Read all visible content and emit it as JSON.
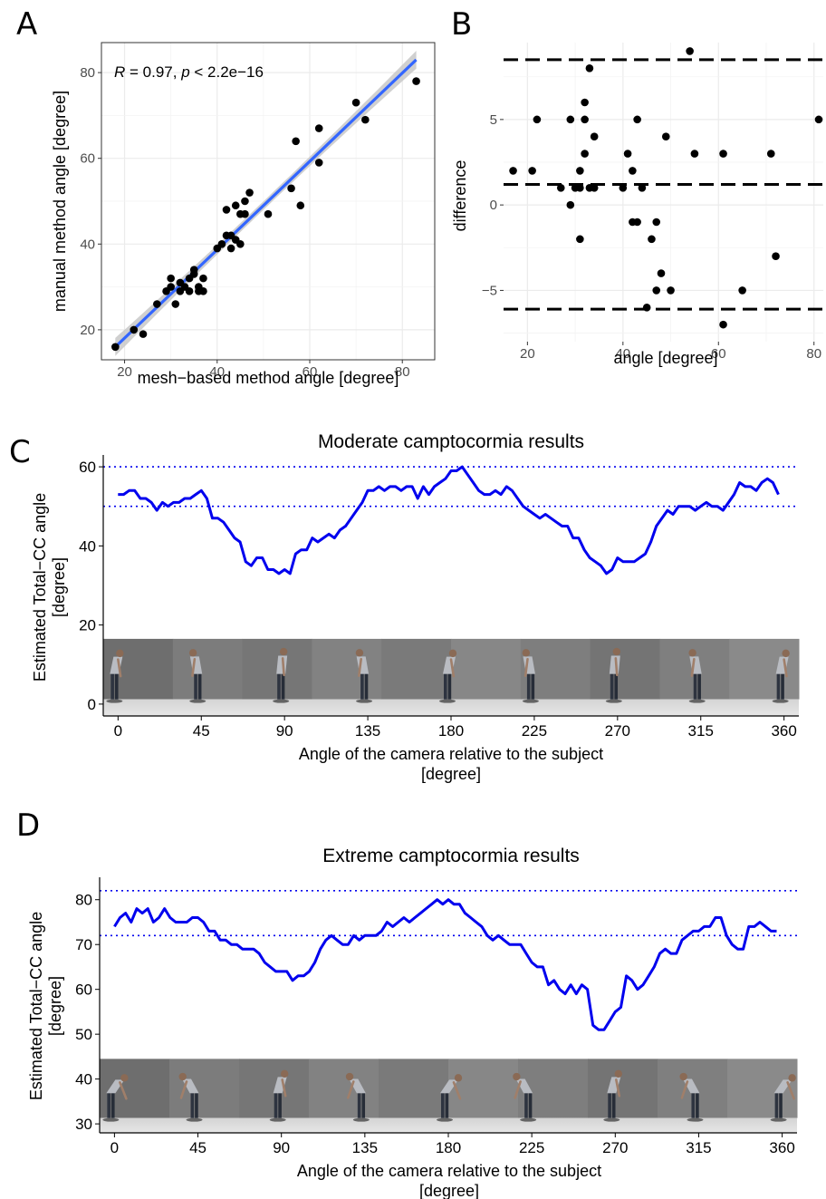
{
  "panels": {
    "A": {
      "letter": "A"
    },
    "B": {
      "letter": "B"
    },
    "C": {
      "letter": "C"
    },
    "D": {
      "letter": "D"
    }
  },
  "colors": {
    "line": "#0000ee",
    "regression": "#3366ff",
    "ci": "#c8c8c8",
    "grid": "#ebebeb",
    "points": "#000000"
  },
  "chart_data": [
    {
      "id": "A",
      "type": "scatter",
      "xlabel": "mesh−based method angle [degree]",
      "ylabel": "manual method angle [degree]",
      "annotation": {
        "r_label": "R",
        "r_value": " = 0.97, ",
        "p_label": "p",
        "p_value": " < 2.2e−16"
      },
      "xlim": [
        15,
        87
      ],
      "ylim": [
        13,
        87
      ],
      "xticks": [
        20,
        40,
        60,
        80
      ],
      "yticks": [
        20,
        40,
        60,
        80
      ],
      "grid": true,
      "regression": {
        "x0": 18,
        "y0": 16,
        "x1": 83,
        "y1": 83
      },
      "points": [
        [
          18,
          16
        ],
        [
          22,
          20
        ],
        [
          24,
          19
        ],
        [
          27,
          26
        ],
        [
          29,
          29
        ],
        [
          30,
          32
        ],
        [
          30,
          30
        ],
        [
          31,
          26
        ],
        [
          32,
          29
        ],
        [
          32,
          31
        ],
        [
          33,
          30
        ],
        [
          34,
          29
        ],
        [
          34,
          32
        ],
        [
          35,
          33
        ],
        [
          35,
          34
        ],
        [
          36,
          30
        ],
        [
          36,
          29
        ],
        [
          37,
          32
        ],
        [
          37,
          29
        ],
        [
          40,
          39
        ],
        [
          41,
          40
        ],
        [
          42,
          42
        ],
        [
          42,
          48
        ],
        [
          43,
          42
        ],
        [
          43,
          39
        ],
        [
          44,
          49
        ],
        [
          44,
          41
        ],
        [
          45,
          47
        ],
        [
          45,
          40
        ],
        [
          46,
          50
        ],
        [
          46,
          47
        ],
        [
          47,
          52
        ],
        [
          51,
          47
        ],
        [
          56,
          53
        ],
        [
          57,
          64
        ],
        [
          58,
          49
        ],
        [
          62,
          67
        ],
        [
          62,
          59
        ],
        [
          70,
          73
        ],
        [
          72,
          69
        ],
        [
          83,
          78
        ]
      ]
    },
    {
      "id": "B",
      "type": "scatter",
      "xlabel": "angle [degree]",
      "ylabel": "difference",
      "xlim": [
        15,
        81
      ],
      "ylim": [
        -8,
        9.5
      ],
      "xticks": [
        20,
        40,
        60,
        80
      ],
      "yticks": [
        -5,
        0,
        5
      ],
      "grid": true,
      "hlines": [
        8.5,
        1.2,
        -6.1
      ],
      "points": [
        [
          17,
          2
        ],
        [
          21,
          2
        ],
        [
          22,
          5
        ],
        [
          27,
          1
        ],
        [
          29,
          5
        ],
        [
          29,
          0
        ],
        [
          30,
          1
        ],
        [
          31,
          1
        ],
        [
          31,
          2
        ],
        [
          31,
          -2
        ],
        [
          32,
          3
        ],
        [
          32,
          5
        ],
        [
          32,
          6
        ],
        [
          33,
          8
        ],
        [
          33,
          1
        ],
        [
          34,
          4
        ],
        [
          34,
          1
        ],
        [
          40,
          1
        ],
        [
          41,
          3
        ],
        [
          42,
          -1
        ],
        [
          42,
          2
        ],
        [
          43,
          5
        ],
        [
          43,
          -1
        ],
        [
          44,
          1
        ],
        [
          45,
          -6
        ],
        [
          46,
          -2
        ],
        [
          47,
          -1
        ],
        [
          47,
          -5
        ],
        [
          48,
          -4
        ],
        [
          49,
          4
        ],
        [
          50,
          -5
        ],
        [
          54,
          9
        ],
        [
          55,
          3
        ],
        [
          61,
          3
        ],
        [
          61,
          -7
        ],
        [
          65,
          -5
        ],
        [
          71,
          3
        ],
        [
          72,
          -3
        ],
        [
          81,
          5
        ]
      ]
    },
    {
      "id": "C",
      "type": "line",
      "title": "Moderate camptocormia results",
      "xlabel_line1": "Angle of the camera relative to the subject",
      "xlabel_line2": "[degree]",
      "ylabel_line1": "Estimated Total−CC angle",
      "ylabel_line2": "[degree]",
      "xlim": [
        -8,
        368
      ],
      "ylim": [
        -3,
        63
      ],
      "xticks": [
        0,
        45,
        90,
        135,
        180,
        225,
        270,
        315,
        360
      ],
      "yticks": [
        0,
        20,
        40,
        60
      ],
      "grid": false,
      "hlines": [
        60,
        50
      ],
      "x": [
        0,
        3,
        6,
        9,
        12,
        15,
        18,
        21,
        24,
        27,
        30,
        33,
        36,
        39,
        42,
        45,
        48,
        51,
        54,
        57,
        60,
        63,
        66,
        69,
        72,
        75,
        78,
        81,
        84,
        87,
        90,
        93,
        96,
        99,
        102,
        105,
        108,
        111,
        114,
        117,
        120,
        123,
        126,
        129,
        132,
        135,
        138,
        141,
        144,
        147,
        150,
        153,
        156,
        159,
        162,
        165,
        168,
        171,
        174,
        177,
        180,
        183,
        186,
        189,
        192,
        195,
        198,
        201,
        204,
        207,
        210,
        213,
        216,
        219,
        222,
        225,
        228,
        231,
        234,
        237,
        240,
        243,
        246,
        249,
        252,
        255,
        258,
        261,
        264,
        267,
        270,
        273,
        276,
        279,
        282,
        285,
        288,
        291,
        294,
        297,
        300,
        303,
        306,
        309,
        312,
        315,
        318,
        321,
        324,
        327,
        330,
        333,
        336,
        339,
        342,
        345,
        348,
        351,
        354,
        357
      ],
      "y": [
        53,
        53,
        54,
        54,
        52,
        52,
        51,
        49,
        51,
        50,
        51,
        51,
        52,
        52,
        53,
        54,
        52,
        47,
        47,
        46,
        44,
        42,
        41,
        36,
        35,
        37,
        37,
        34,
        34,
        33,
        34,
        33,
        38,
        39,
        39,
        42,
        41,
        42,
        43,
        42,
        44,
        45,
        47,
        49,
        51,
        54,
        54,
        55,
        54,
        55,
        55,
        54,
        55,
        55,
        52,
        55,
        53,
        55,
        56,
        57,
        59,
        59,
        60,
        58,
        56,
        54,
        53,
        53,
        54,
        53,
        55,
        54,
        52,
        50,
        49,
        48,
        47,
        48,
        47,
        46,
        45,
        45,
        42,
        42,
        39,
        37,
        36,
        35,
        33,
        34,
        37,
        36,
        36,
        36,
        37,
        38,
        41,
        45,
        47,
        49,
        48,
        50,
        50,
        50,
        49,
        50,
        51,
        50,
        50,
        49,
        51,
        53,
        56,
        55,
        55,
        54,
        56,
        57,
        56,
        53
      ]
    },
    {
      "id": "D",
      "type": "line",
      "title": "Extreme camptocormia results",
      "xlabel_line1": "Angle of the camera relative to the subject",
      "xlabel_line2": "[degree]",
      "ylabel_line1": "Estimated Total−CC angle",
      "ylabel_line2": "[degree]",
      "xlim": [
        -8,
        368
      ],
      "ylim": [
        28,
        85
      ],
      "xticks": [
        0,
        45,
        90,
        135,
        180,
        225,
        270,
        315,
        360
      ],
      "yticks": [
        30,
        40,
        50,
        60,
        70,
        80
      ],
      "grid": false,
      "hlines": [
        82,
        72
      ],
      "x": [
        0,
        3,
        6,
        9,
        12,
        15,
        18,
        21,
        24,
        27,
        30,
        33,
        36,
        39,
        42,
        45,
        48,
        51,
        54,
        57,
        60,
        63,
        66,
        69,
        72,
        75,
        78,
        81,
        84,
        87,
        90,
        93,
        96,
        99,
        102,
        105,
        108,
        111,
        114,
        117,
        120,
        123,
        126,
        129,
        132,
        135,
        138,
        141,
        144,
        147,
        150,
        153,
        156,
        159,
        162,
        165,
        168,
        171,
        174,
        177,
        180,
        183,
        186,
        189,
        192,
        195,
        198,
        201,
        204,
        207,
        210,
        213,
        216,
        219,
        222,
        225,
        228,
        231,
        234,
        237,
        240,
        243,
        246,
        249,
        252,
        255,
        258,
        261,
        264,
        267,
        270,
        273,
        276,
        279,
        282,
        285,
        288,
        291,
        294,
        297,
        300,
        303,
        306,
        309,
        312,
        315,
        318,
        321,
        324,
        327,
        330,
        333,
        336,
        339,
        342,
        345,
        348,
        351,
        354,
        357
      ],
      "y": [
        74,
        76,
        77,
        75,
        78,
        77,
        78,
        75,
        76,
        78,
        76,
        75,
        75,
        75,
        76,
        76,
        75,
        73,
        73,
        71,
        71,
        70,
        70,
        69,
        69,
        69,
        68,
        66,
        65,
        64,
        64,
        64,
        62,
        63,
        63,
        64,
        66,
        69,
        71,
        72,
        71,
        70,
        70,
        72,
        71,
        72,
        72,
        72,
        73,
        75,
        74,
        75,
        76,
        75,
        76,
        77,
        78,
        79,
        80,
        79,
        80,
        79,
        79,
        77,
        76,
        75,
        74,
        72,
        71,
        72,
        71,
        70,
        70,
        70,
        68,
        66,
        65,
        65,
        61,
        62,
        60,
        59,
        61,
        59,
        61,
        60,
        52,
        51,
        51,
        53,
        55,
        56,
        63,
        62,
        60,
        61,
        63,
        65,
        68,
        69,
        68,
        68,
        71,
        72,
        73,
        73,
        74,
        74,
        76,
        76,
        72,
        70,
        69,
        69,
        74,
        74,
        75,
        74,
        73,
        73
      ]
    }
  ]
}
